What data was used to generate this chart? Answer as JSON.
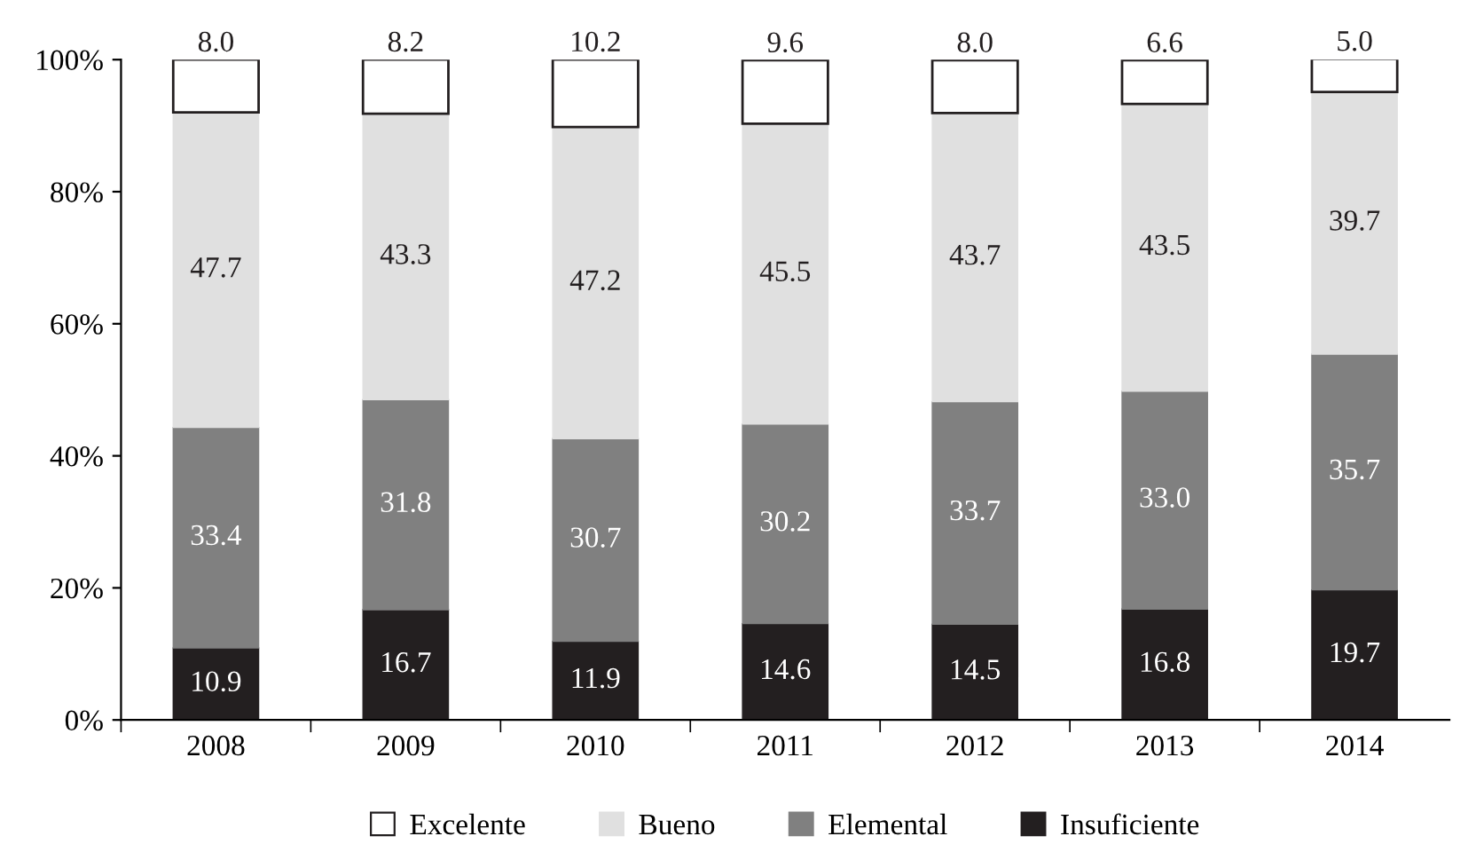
{
  "chart_data": {
    "type": "bar",
    "stacked": true,
    "categories": [
      "2008",
      "2009",
      "2010",
      "2011",
      "2012",
      "2013",
      "2014"
    ],
    "series": [
      {
        "name": "Insuficiente",
        "color": "#231f20",
        "values": [
          10.9,
          16.7,
          11.9,
          14.6,
          14.5,
          16.8,
          19.7
        ],
        "value_labels": [
          "10.9",
          "16.7",
          "11.9",
          "14.6",
          "14.5",
          "16.8",
          "19.7"
        ]
      },
      {
        "name": "Elemental",
        "color": "#808080",
        "values": [
          33.4,
          31.8,
          30.7,
          30.2,
          33.7,
          33.0,
          35.7
        ],
        "value_labels": [
          "33.4",
          "31.8",
          "30.7",
          "30.2",
          "33.7",
          "33.0",
          "35.7"
        ]
      },
      {
        "name": "Bueno",
        "color": "#e0e0e0",
        "values": [
          47.7,
          43.3,
          47.2,
          45.5,
          43.7,
          43.5,
          39.7
        ],
        "value_labels": [
          "47.7",
          "43.3",
          "47.2",
          "45.5",
          "43.7",
          "43.5",
          "39.7"
        ]
      },
      {
        "name": "Excelente",
        "color": "#ffffff",
        "values": [
          8.0,
          8.2,
          10.2,
          9.6,
          8.0,
          6.6,
          5.0
        ],
        "value_labels": [
          "8.0",
          "8.2",
          "10.2",
          "9.6",
          "8.0",
          "6.6",
          "5.0"
        ]
      }
    ],
    "ylim": [
      0,
      100
    ],
    "yticks": [
      {
        "value": 0,
        "label": "0%"
      },
      {
        "value": 20,
        "label": "20%"
      },
      {
        "value": 40,
        "label": "40%"
      },
      {
        "value": 60,
        "label": "60%"
      },
      {
        "value": 80,
        "label": "80%"
      },
      {
        "value": 100,
        "label": "100%"
      }
    ],
    "grid": false,
    "legend": "bottom"
  }
}
